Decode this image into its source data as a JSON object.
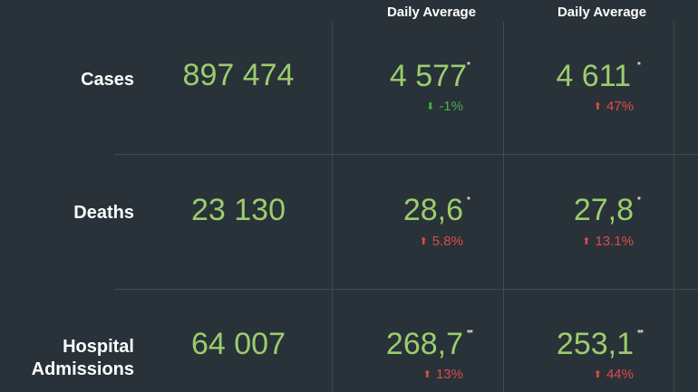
{
  "columns": [
    {
      "header": "Daily Average"
    },
    {
      "header": "Daily Average"
    }
  ],
  "rows": [
    {
      "label_lines": [
        "Cases"
      ],
      "total": "897 474",
      "averages": [
        {
          "value": "4 577",
          "mark": "*",
          "direction": "down",
          "arrow": "⬇",
          "change": "-1%"
        },
        {
          "value": "4 611",
          "mark": "*",
          "direction": "up",
          "arrow": "⬆",
          "change": "47%"
        }
      ]
    },
    {
      "label_lines": [
        "Deaths"
      ],
      "total": "23 130",
      "averages": [
        {
          "value": "28,6",
          "mark": "*",
          "direction": "up",
          "arrow": "⬆",
          "change": "5.8%"
        },
        {
          "value": "27,8",
          "mark": "*",
          "direction": "up",
          "arrow": "⬆",
          "change": "13.1%"
        }
      ]
    },
    {
      "label_lines": [
        "Hospital",
        "Admissions"
      ],
      "total": "64 007",
      "averages": [
        {
          "value": "268,7",
          "mark": "**",
          "direction": "up",
          "arrow": "⬆",
          "change": "13%"
        },
        {
          "value": "253,1",
          "mark": "**",
          "direction": "up",
          "arrow": "⬆",
          "change": "44%"
        }
      ]
    }
  ],
  "colors": {
    "background": "#283238",
    "value_green": "#9ccc6e",
    "decrease_green": "#4caf50",
    "increase_red": "#e04a4a",
    "divider": "#3f4b52"
  }
}
